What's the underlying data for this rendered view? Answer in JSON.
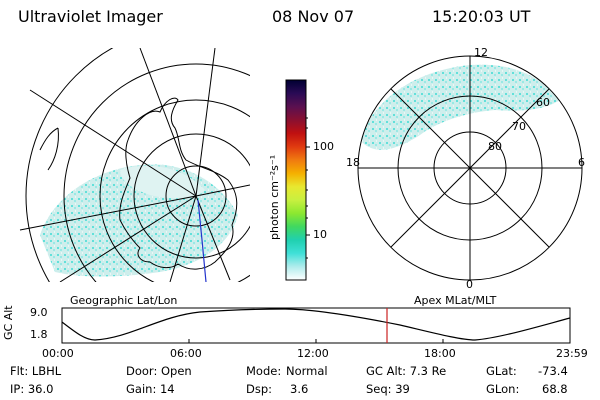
{
  "header": {
    "instrument": "Ultraviolet Imager",
    "date": "08 Nov 07",
    "time": "15:20:03 UT"
  },
  "left_panel": {
    "caption": "Geographic Lat/Lon"
  },
  "right_panel": {
    "caption": "Apex MLat/MLT",
    "mlt_labels": [
      "12",
      "18",
      "6",
      "0"
    ],
    "lat_labels": [
      "60",
      "70",
      "80"
    ]
  },
  "colorbar": {
    "unit_label": "photon cm⁻²s⁻¹",
    "ticks": [
      "100",
      "10"
    ],
    "colors": [
      "#000033",
      "#2a0a55",
      "#5a1050",
      "#8a1030",
      "#c01010",
      "#e03a10",
      "#f07a10",
      "#f5b000",
      "#e8e830",
      "#c8f040",
      "#8ce830",
      "#40d860",
      "#20d0b0",
      "#40e0d8",
      "#b0ecec",
      "#ffffff"
    ]
  },
  "alt_plot": {
    "ylabel": "GC Alt",
    "y_ticks": [
      "9.0",
      "1.8"
    ],
    "x_ticks": [
      "00:00",
      "06:00",
      "12:00",
      "18:00",
      "23:59"
    ],
    "marker_color": "#cc2222"
  },
  "info": {
    "flt": "Flt: LBHL",
    "ip": "IP: 36.0",
    "door": "Door: Open",
    "gain": "Gain: 14",
    "mode_label": "Mode:",
    "mode_value": "Normal",
    "dsp_label": "Dsp:",
    "dsp_value": "3.6",
    "gc_alt": "GC Alt: 7.3 Re",
    "seq": "Seq: 39",
    "glat_label": "GLat:",
    "glat_value": "-73.4",
    "glon_label": "GLon:",
    "glon_value": "68.8"
  }
}
